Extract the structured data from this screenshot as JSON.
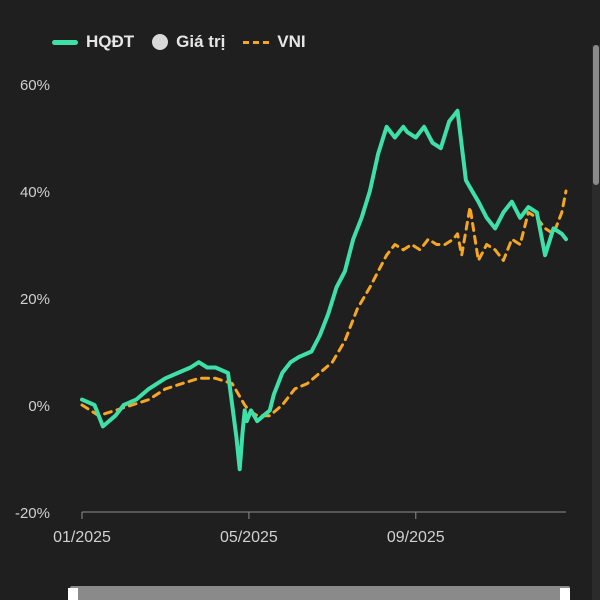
{
  "legend": {
    "hqdt": {
      "label": "HQĐT",
      "color": "#3ee0a8"
    },
    "value": {
      "label": "Giá trị",
      "color": "#d9d9d9"
    },
    "vni": {
      "label": "VNI",
      "color": "#f5a623"
    }
  },
  "chart_data": {
    "type": "line",
    "x_ticks": [
      "01/2025",
      "05/2025",
      "09/2025"
    ],
    "y_ticks": [
      "60%",
      "40%",
      "20%",
      "0%",
      "-20%"
    ],
    "ylim": [
      -20,
      60
    ],
    "x_domain": [
      0,
      11.6
    ],
    "x_tick_values": [
      0,
      4,
      8
    ],
    "grid": false,
    "legend_position": "top-left",
    "series": [
      {
        "name": "HQĐT",
        "color": "#3ee0a8",
        "x": [
          0,
          0.3,
          0.5,
          0.8,
          1.0,
          1.3,
          1.6,
          2.0,
          2.3,
          2.6,
          2.8,
          3.0,
          3.2,
          3.5,
          3.7,
          3.78,
          3.85,
          3.9,
          3.95,
          4.05,
          4.2,
          4.35,
          4.5,
          4.6,
          4.8,
          5.0,
          5.2,
          5.5,
          5.7,
          5.9,
          6.1,
          6.3,
          6.5,
          6.7,
          6.9,
          7.1,
          7.3,
          7.5,
          7.7,
          7.8,
          8.0,
          8.2,
          8.4,
          8.6,
          8.8,
          9.0,
          9.2,
          9.35,
          9.5,
          9.7,
          9.9,
          10.1,
          10.3,
          10.5,
          10.7,
          10.9,
          11.1,
          11.3,
          11.5,
          11.6
        ],
        "y": [
          1,
          0,
          -4,
          -2,
          0,
          1,
          3,
          5,
          6,
          7,
          8,
          7,
          7,
          6,
          -6,
          -12,
          -5,
          -1,
          -3,
          -1,
          -3,
          -2,
          -1,
          2,
          6,
          8,
          9,
          10,
          13,
          17,
          22,
          25,
          31,
          35,
          40,
          47,
          52,
          50,
          52,
          51,
          50,
          52,
          49,
          48,
          53,
          55,
          42,
          40,
          38,
          35,
          33,
          36,
          38,
          35,
          37,
          36,
          28,
          33,
          32,
          31
        ]
      },
      {
        "name": "VNI",
        "color": "#f5a623",
        "x": [
          0,
          0.4,
          0.8,
          1.2,
          1.6,
          2.0,
          2.4,
          2.8,
          3.2,
          3.6,
          3.9,
          4.0,
          4.2,
          4.5,
          4.8,
          5.1,
          5.4,
          5.7,
          6.0,
          6.3,
          6.6,
          6.9,
          7.1,
          7.3,
          7.5,
          7.7,
          7.9,
          8.1,
          8.3,
          8.5,
          8.7,
          8.9,
          9.0,
          9.1,
          9.3,
          9.5,
          9.7,
          9.9,
          10.1,
          10.3,
          10.5,
          10.7,
          10.9,
          11.1,
          11.3,
          11.5,
          11.6
        ],
        "y": [
          0,
          -2,
          -1,
          0,
          1,
          3,
          4,
          5,
          5,
          4,
          0,
          -1,
          -2,
          -2,
          0,
          3,
          4,
          6,
          8,
          12,
          18,
          22,
          25,
          28,
          30,
          29,
          30,
          29,
          31,
          30,
          30,
          31,
          32,
          28,
          37,
          27,
          30,
          29,
          27,
          31,
          30,
          36,
          35,
          33,
          32,
          36,
          40
        ]
      }
    ]
  }
}
